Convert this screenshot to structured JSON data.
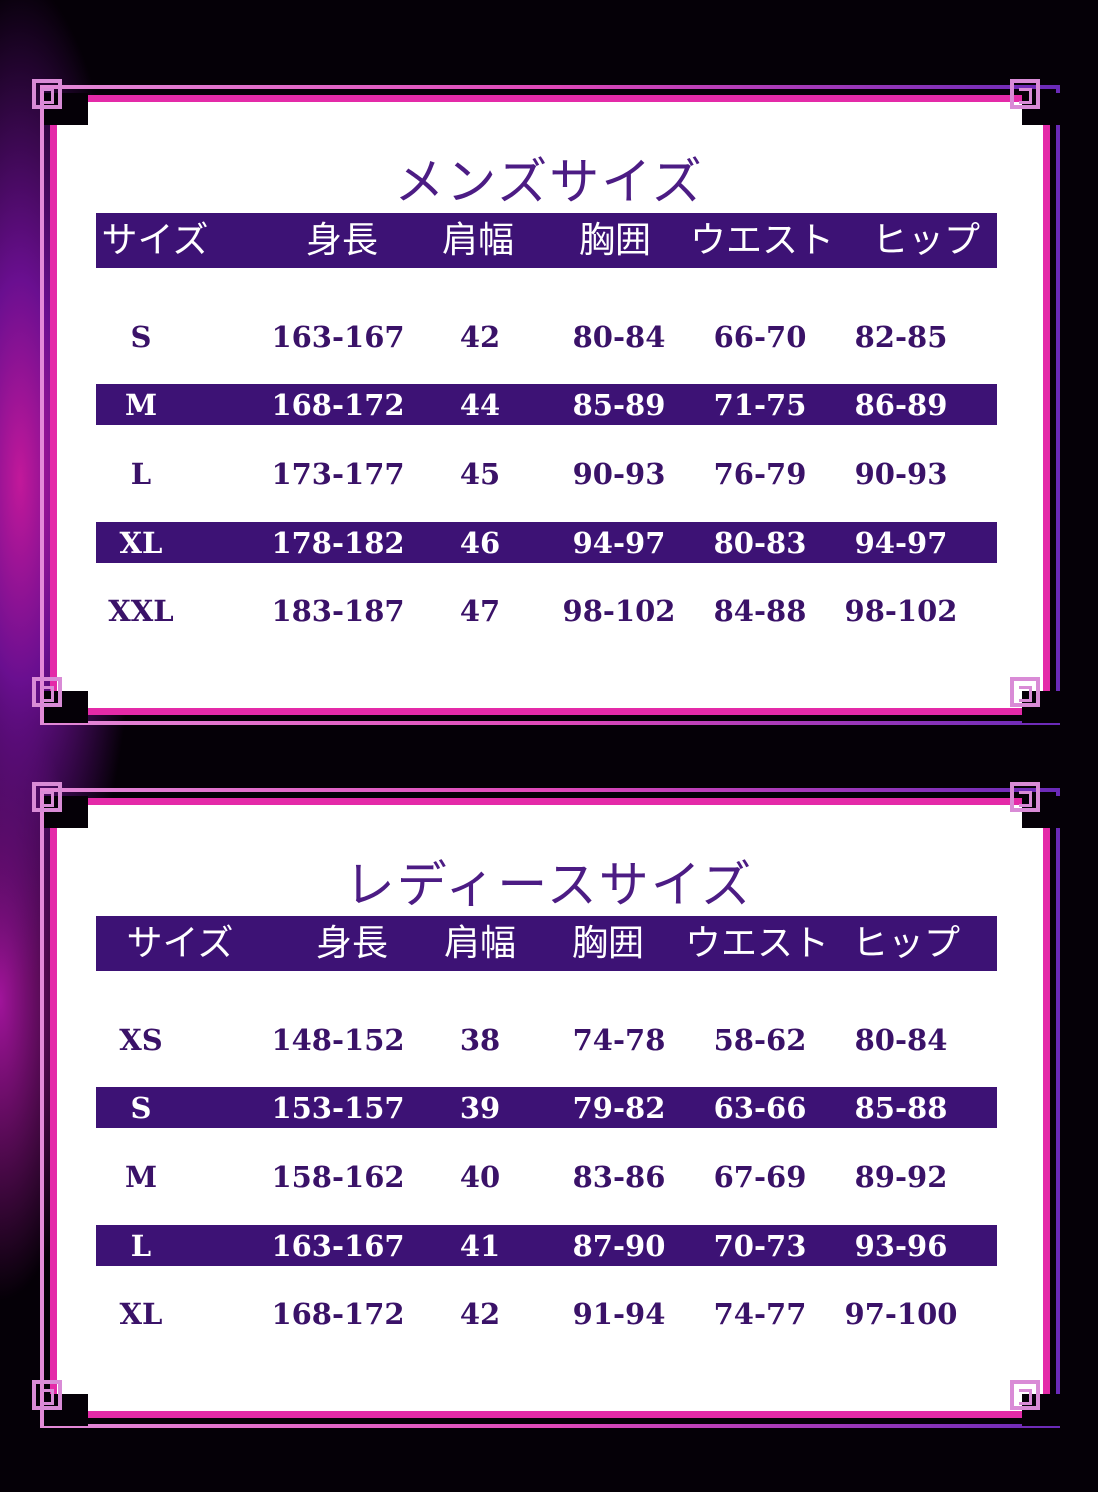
{
  "colors": {
    "band": "#3d1275",
    "title": "#4c1c84",
    "frame_pink": "#e42aa8",
    "frame_purple": "#6a2ab8"
  },
  "tables": [
    {
      "title": "メンズサイズ",
      "headers": [
        "サイズ",
        "身長",
        "肩幅",
        "胸囲",
        "ウエスト",
        "ヒップ"
      ],
      "rows": [
        [
          "S",
          "163-167",
          "42",
          "80-84",
          "66-70",
          "82-85"
        ],
        [
          "M",
          "168-172",
          "44",
          "85-89",
          "71-75",
          "86-89"
        ],
        [
          "L",
          "173-177",
          "45",
          "90-93",
          "76-79",
          "90-93"
        ],
        [
          "XL",
          "178-182",
          "46",
          "94-97",
          "80-83",
          "94-97"
        ],
        [
          "XXL",
          "183-187",
          "47",
          "98-102",
          "84-88",
          "98-102"
        ]
      ]
    },
    {
      "title": "レディースサイズ",
      "headers": [
        "サイズ",
        "身長",
        "肩幅",
        "胸囲",
        "ウエスト",
        "ヒップ"
      ],
      "rows": [
        [
          "XS",
          "148-152",
          "38",
          "74-78",
          "58-62",
          "80-84"
        ],
        [
          "S",
          "153-157",
          "39",
          "79-82",
          "63-66",
          "85-88"
        ],
        [
          "M",
          "158-162",
          "40",
          "83-86",
          "67-69",
          "89-92"
        ],
        [
          "L",
          "163-167",
          "41",
          "87-90",
          "70-73",
          "93-96"
        ],
        [
          "XL",
          "168-172",
          "42",
          "91-94",
          "74-77",
          "97-100"
        ]
      ]
    }
  ]
}
